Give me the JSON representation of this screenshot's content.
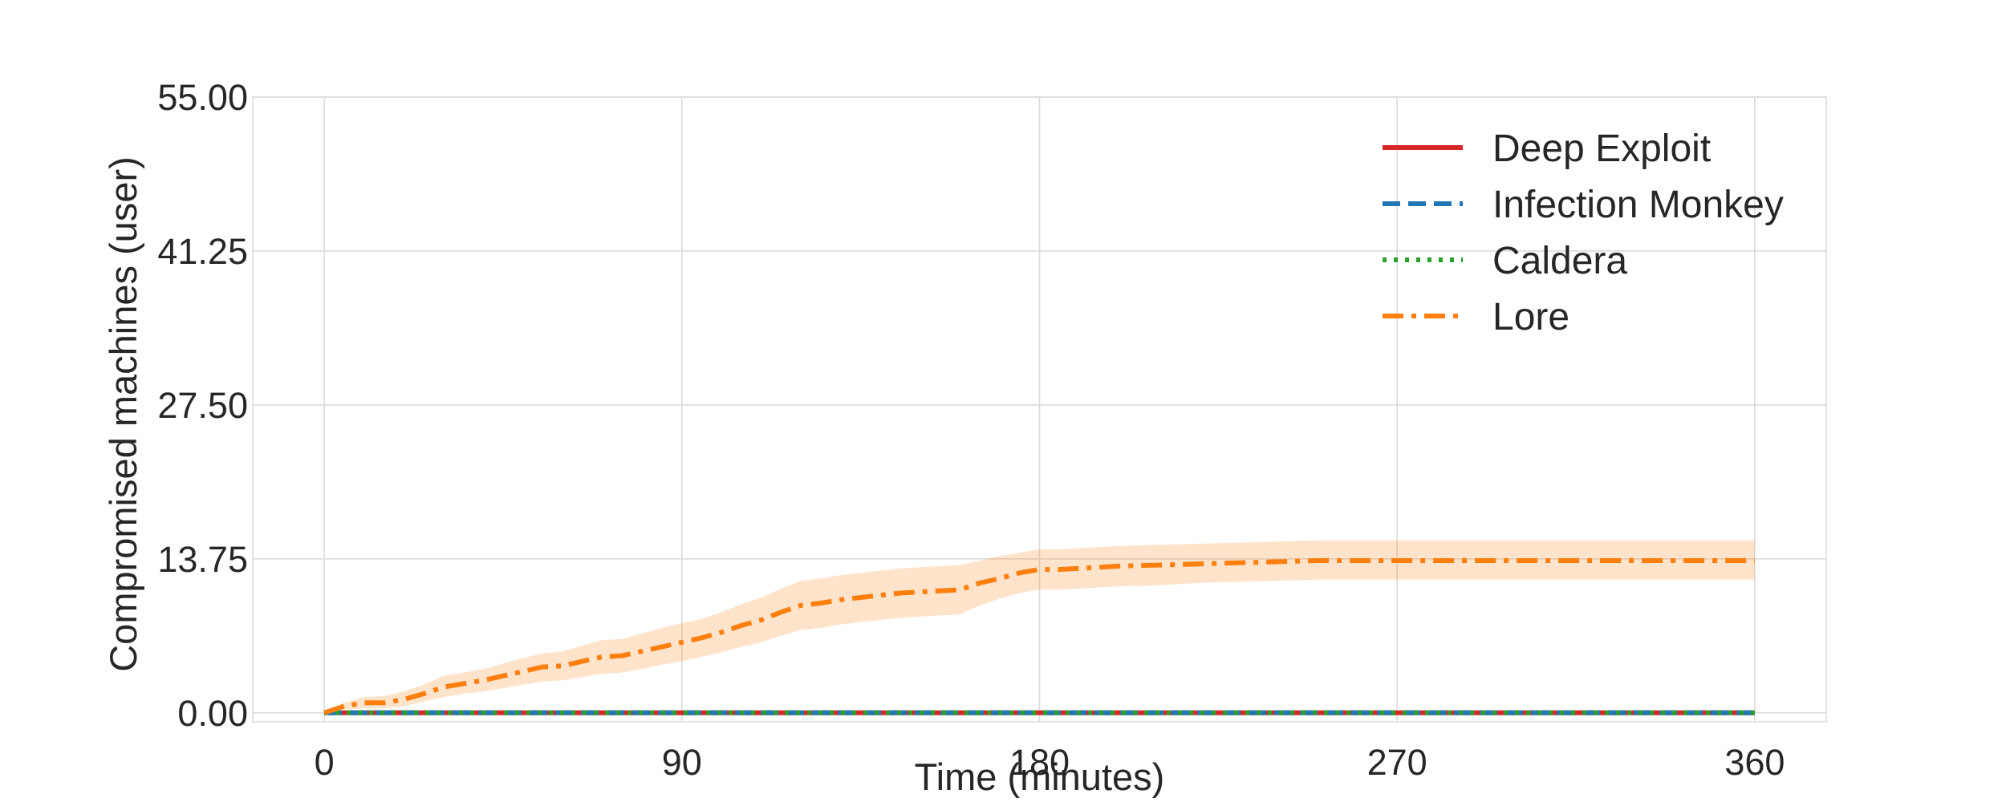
{
  "chart_data": {
    "type": "line",
    "title": "",
    "xlabel": "Time (minutes)",
    "ylabel": "Compromised machines (user)",
    "xlim": [
      -18,
      378
    ],
    "ylim": [
      -0.8,
      55
    ],
    "xticks": [
      0,
      90,
      180,
      270,
      360
    ],
    "yticks": [
      0.0,
      13.75,
      27.5,
      41.25,
      55.0
    ],
    "xtick_labels": [
      "0",
      "90",
      "180",
      "270",
      "360"
    ],
    "ytick_labels": [
      "0.00",
      "13.75",
      "27.50",
      "41.25",
      "55.00"
    ],
    "grid": true,
    "legend_position": "top-right",
    "series": [
      {
        "name": "Deep Exploit",
        "color": "#d62728",
        "style": "solid",
        "x": [
          0,
          360
        ],
        "y": [
          0,
          0
        ]
      },
      {
        "name": "Infection Monkey",
        "color": "#1f77b4",
        "style": "dashed",
        "x": [
          0,
          360
        ],
        "y": [
          0,
          0
        ]
      },
      {
        "name": "Caldera",
        "color": "#2ca02c",
        "style": "dotted",
        "x": [
          0,
          360
        ],
        "y": [
          0,
          0
        ]
      },
      {
        "name": "Lore",
        "color": "#ff7f0e",
        "style": "dashdot",
        "x": [
          0,
          5,
          10,
          15,
          20,
          25,
          30,
          35,
          40,
          45,
          50,
          55,
          60,
          65,
          70,
          75,
          80,
          85,
          90,
          95,
          100,
          105,
          110,
          115,
          120,
          125,
          130,
          135,
          140,
          145,
          150,
          155,
          160,
          165,
          170,
          175,
          180,
          185,
          190,
          200,
          210,
          220,
          230,
          240,
          250,
          260,
          270,
          280,
          300,
          320,
          340,
          360
        ],
        "y": [
          0,
          0.6,
          0.9,
          0.9,
          1.2,
          1.7,
          2.3,
          2.6,
          2.9,
          3.3,
          3.7,
          4.1,
          4.2,
          4.6,
          5.0,
          5.1,
          5.5,
          5.9,
          6.3,
          6.7,
          7.2,
          7.8,
          8.3,
          9.0,
          9.6,
          9.8,
          10.1,
          10.3,
          10.5,
          10.7,
          10.8,
          10.9,
          11.0,
          11.6,
          12.0,
          12.5,
          12.8,
          12.8,
          12.9,
          13.1,
          13.2,
          13.3,
          13.4,
          13.5,
          13.6,
          13.6,
          13.6,
          13.6,
          13.6,
          13.6,
          13.6,
          13.6
        ],
        "band_lower": [
          0,
          0.3,
          0.4,
          0.4,
          0.6,
          1.0,
          1.4,
          1.7,
          1.9,
          2.2,
          2.5,
          2.8,
          2.9,
          3.2,
          3.5,
          3.6,
          3.9,
          4.3,
          4.6,
          5.0,
          5.4,
          5.9,
          6.3,
          6.9,
          7.4,
          7.6,
          7.9,
          8.1,
          8.3,
          8.5,
          8.6,
          8.7,
          8.8,
          9.6,
          10.2,
          10.7,
          11.0,
          11.0,
          11.1,
          11.3,
          11.4,
          11.6,
          11.7,
          11.8,
          11.9,
          11.9,
          11.9,
          11.9,
          11.9,
          11.9,
          11.9,
          11.9
        ],
        "band_upper": [
          0,
          0.9,
          1.4,
          1.5,
          1.9,
          2.5,
          3.3,
          3.6,
          3.9,
          4.4,
          4.9,
          5.3,
          5.5,
          6.0,
          6.5,
          6.6,
          7.1,
          7.6,
          8.0,
          8.4,
          9.0,
          9.7,
          10.3,
          11.1,
          11.8,
          12.0,
          12.3,
          12.5,
          12.7,
          12.9,
          13.0,
          13.1,
          13.2,
          13.6,
          14.0,
          14.3,
          14.6,
          14.6,
          14.7,
          14.9,
          15.0,
          15.1,
          15.2,
          15.3,
          15.4,
          15.4,
          15.4,
          15.4,
          15.4,
          15.4,
          15.4,
          15.4
        ]
      }
    ]
  }
}
